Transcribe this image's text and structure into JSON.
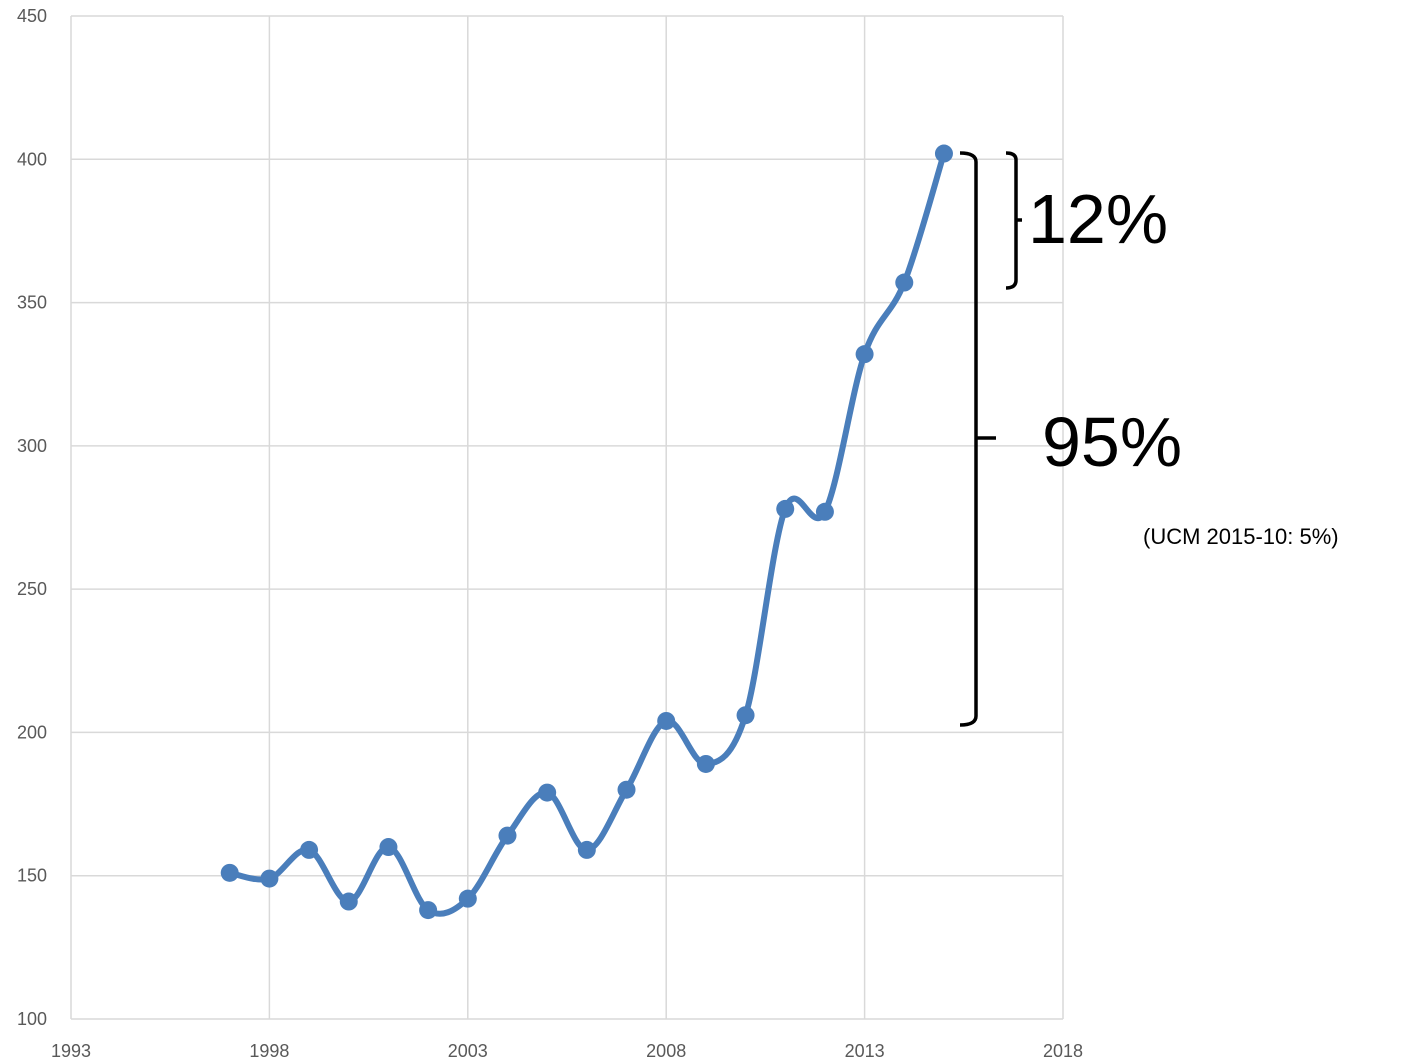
{
  "chart_data": {
    "type": "line",
    "x": [
      1997,
      1998,
      1999,
      2000,
      2001,
      2002,
      2003,
      2004,
      2005,
      2006,
      2007,
      2008,
      2009,
      2010,
      2011,
      2012,
      2013,
      2014,
      2015
    ],
    "series": [
      {
        "color": "#4a7ebb",
        "values": [
          151,
          149,
          159,
          141,
          160,
          138,
          142,
          164,
          179,
          159,
          180,
          204,
          189,
          206,
          278,
          277,
          332,
          357,
          402
        ]
      }
    ],
    "xlim": [
      1993,
      2018
    ],
    "xticks": [
      1993,
      1998,
      2003,
      2008,
      2013,
      2018
    ],
    "ylim": [
      100,
      450
    ],
    "yticks": [
      100,
      150,
      200,
      250,
      300,
      350,
      400,
      450
    ],
    "grid": true,
    "smooth": true,
    "annotations": [
      "12%",
      "95%",
      "(UCM 2015-10: 5%)"
    ]
  }
}
